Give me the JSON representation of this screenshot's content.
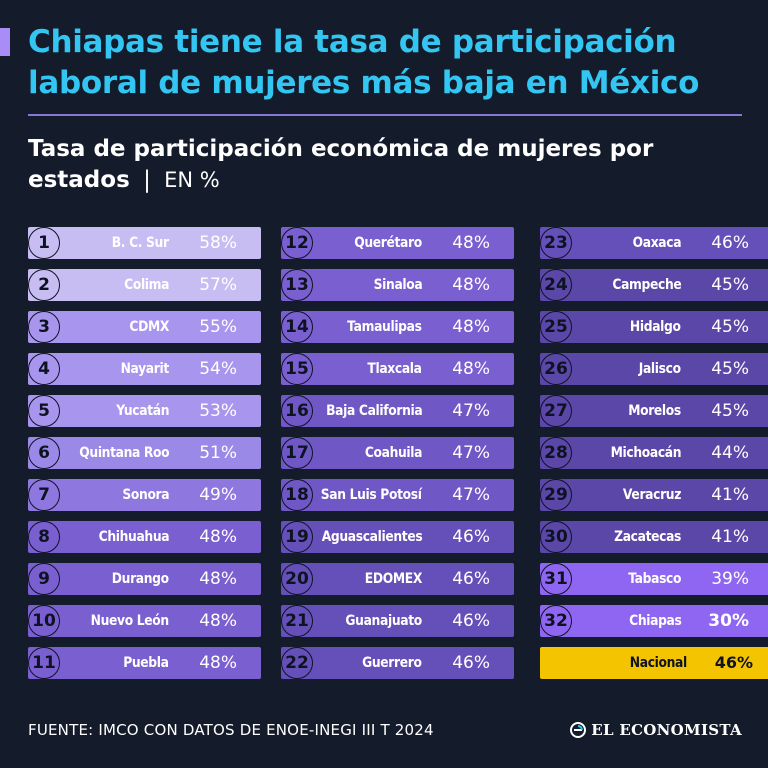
{
  "headline": "Chiapas tiene la tasa de participación laboral de mujeres más baja en México",
  "subtitle": {
    "bold": "Tasa de participación económica de mujeres por estados",
    "separator": "|",
    "unit": "EN %"
  },
  "colors": {
    "background": "#141b2b",
    "headline": "#33c6f2",
    "accent": "#a98cf5",
    "national": "#f5c400"
  },
  "chart_data": {
    "type": "table",
    "value_suffix": "%",
    "states": [
      {
        "rank": "1",
        "name": "B. C. Sur",
        "value": 58,
        "label": "58%"
      },
      {
        "rank": "2",
        "name": "Colima",
        "value": 57,
        "label": "57%"
      },
      {
        "rank": "3",
        "name": "CDMX",
        "value": 55,
        "label": "55%"
      },
      {
        "rank": "4",
        "name": "Nayarit",
        "value": 54,
        "label": "54%"
      },
      {
        "rank": "5",
        "name": "Yucatán",
        "value": 53,
        "label": "53%"
      },
      {
        "rank": "6",
        "name": "Quintana Roo",
        "value": 51,
        "label": "51%"
      },
      {
        "rank": "7",
        "name": "Sonora",
        "value": 49,
        "label": "49%"
      },
      {
        "rank": "8",
        "name": "Chihuahua",
        "value": 48,
        "label": "48%"
      },
      {
        "rank": "9",
        "name": "Durango",
        "value": 48,
        "label": "48%"
      },
      {
        "rank": "10",
        "name": "Nuevo León",
        "value": 48,
        "label": "48%"
      },
      {
        "rank": "11",
        "name": "Puebla",
        "value": 48,
        "label": "48%"
      },
      {
        "rank": "12",
        "name": "Querétaro",
        "value": 48,
        "label": "48%"
      },
      {
        "rank": "13",
        "name": "Sinaloa",
        "value": 48,
        "label": "48%"
      },
      {
        "rank": "14",
        "name": "Tamaulipas",
        "value": 48,
        "label": "48%"
      },
      {
        "rank": "15",
        "name": "Tlaxcala",
        "value": 48,
        "label": "48%"
      },
      {
        "rank": "16",
        "name": "Baja California",
        "value": 47,
        "label": "47%"
      },
      {
        "rank": "17",
        "name": "Coahuila",
        "value": 47,
        "label": "47%"
      },
      {
        "rank": "18",
        "name": "San Luis Potosí",
        "value": 47,
        "label": "47%"
      },
      {
        "rank": "19",
        "name": "Aguascalientes",
        "value": 46,
        "label": "46%"
      },
      {
        "rank": "20",
        "name": "EDOMEX",
        "value": 46,
        "label": "46%"
      },
      {
        "rank": "21",
        "name": "Guanajuato",
        "value": 46,
        "label": "46%"
      },
      {
        "rank": "22",
        "name": "Guerrero",
        "value": 46,
        "label": "46%"
      },
      {
        "rank": "23",
        "name": "Oaxaca",
        "value": 46,
        "label": "46%"
      },
      {
        "rank": "24",
        "name": "Campeche",
        "value": 45,
        "label": "45%"
      },
      {
        "rank": "25",
        "name": "Hidalgo",
        "value": 45,
        "label": "45%"
      },
      {
        "rank": "26",
        "name": "Jalisco",
        "value": 45,
        "label": "45%"
      },
      {
        "rank": "27",
        "name": "Morelos",
        "value": 45,
        "label": "45%"
      },
      {
        "rank": "28",
        "name": "Michoacán",
        "value": 44,
        "label": "44%"
      },
      {
        "rank": "29",
        "name": "Veracruz",
        "value": 41,
        "label": "41%"
      },
      {
        "rank": "30",
        "name": "Zacatecas",
        "value": 41,
        "label": "41%"
      },
      {
        "rank": "31",
        "name": "Tabasco",
        "value": 39,
        "label": "39%"
      },
      {
        "rank": "32",
        "name": "Chiapas",
        "value": 30,
        "label": "30%"
      }
    ],
    "national": {
      "name": "Nacional",
      "value": 46,
      "label": "46%"
    }
  },
  "footer": {
    "source": "FUENTE: IMCO CON DATOS DE ENOE-INEGI III T 2024",
    "brand": "EL ECONOMISTA",
    "brand_icon": "el-economista-logo-icon"
  }
}
